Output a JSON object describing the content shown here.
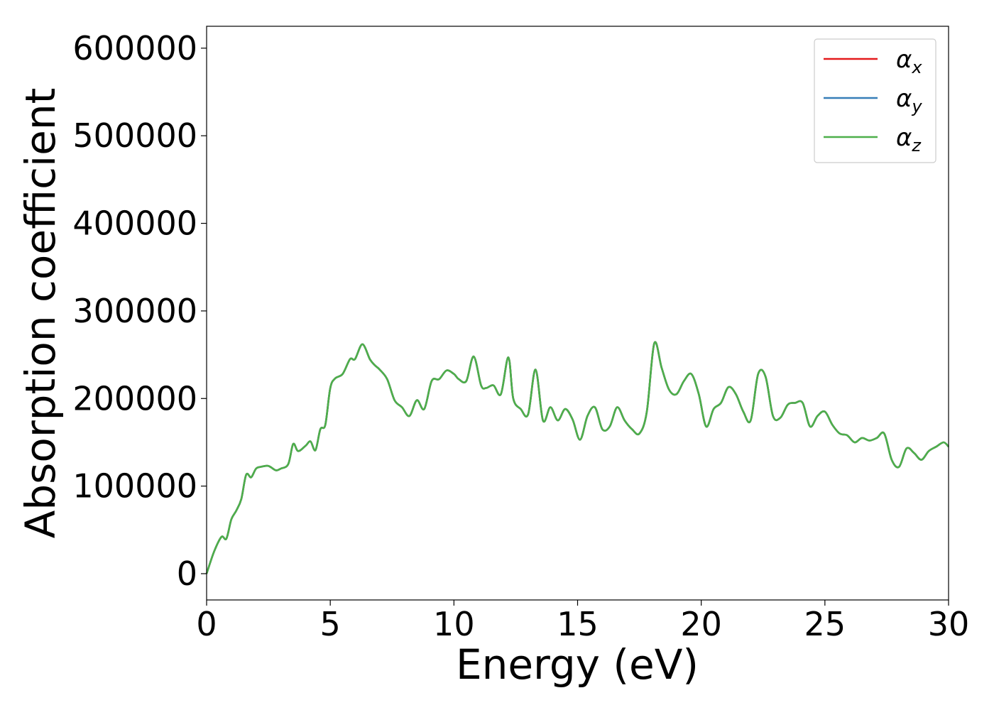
{
  "chart_data": {
    "type": "line",
    "title": "",
    "xlabel": "Energy (eV)",
    "ylabel": "Absorption coefficient",
    "xlim": [
      0,
      30
    ],
    "ylim": [
      -30000,
      625000
    ],
    "xticks": [
      0,
      5,
      10,
      15,
      20,
      25,
      30
    ],
    "yticks": [
      0,
      100000,
      200000,
      300000,
      400000,
      500000,
      600000
    ],
    "grid": false,
    "legend_position": "top-right",
    "x": [
      0,
      0.3,
      0.6,
      0.8,
      1.0,
      1.2,
      1.4,
      1.6,
      1.8,
      2.0,
      2.2,
      2.5,
      2.8,
      3.0,
      3.3,
      3.5,
      3.7,
      4.0,
      4.2,
      4.4,
      4.6,
      4.8,
      5.0,
      5.2,
      5.5,
      5.8,
      6.0,
      6.3,
      6.6,
      6.8,
      7.0,
      7.3,
      7.6,
      7.9,
      8.2,
      8.5,
      8.8,
      9.1,
      9.4,
      9.7,
      10.0,
      10.2,
      10.5,
      10.8,
      11.1,
      11.3,
      11.6,
      11.9,
      12.2,
      12.4,
      12.7,
      13.0,
      13.3,
      13.6,
      13.9,
      14.2,
      14.5,
      14.8,
      15.1,
      15.4,
      15.7,
      16.0,
      16.3,
      16.6,
      16.9,
      17.2,
      17.5,
      17.8,
      18.1,
      18.4,
      18.7,
      19.0,
      19.3,
      19.6,
      19.9,
      20.2,
      20.5,
      20.8,
      21.1,
      21.4,
      21.7,
      22.0,
      22.3,
      22.6,
      22.9,
      23.2,
      23.5,
      23.8,
      24.1,
      24.4,
      24.7,
      25.0,
      25.3,
      25.6,
      25.9,
      26.2,
      26.5,
      26.8,
      27.1,
      27.4,
      27.7,
      28.0,
      28.3,
      28.6,
      28.9,
      29.2,
      29.5,
      29.8,
      30.0
    ],
    "series": [
      {
        "name": "α_x",
        "color": "#e41a1c",
        "values": [
          0,
          25000,
          42000,
          40000,
          62000,
          72000,
          85000,
          113000,
          110000,
          120000,
          122000,
          123000,
          118000,
          120000,
          125000,
          148000,
          140000,
          146000,
          151000,
          141000,
          165000,
          170000,
          212000,
          223000,
          228000,
          245000,
          245000,
          262000,
          245000,
          238000,
          233000,
          222000,
          198000,
          190000,
          180000,
          198000,
          188000,
          220000,
          222000,
          232000,
          228000,
          222000,
          220000,
          248000,
          215000,
          212000,
          215000,
          205000,
          247000,
          200000,
          188000,
          182000,
          233000,
          175000,
          190000,
          175000,
          188000,
          176000,
          153000,
          180000,
          190000,
          165000,
          168000,
          190000,
          175000,
          165000,
          160000,
          185000,
          263000,
          235000,
          210000,
          205000,
          220000,
          228000,
          205000,
          168000,
          188000,
          195000,
          213000,
          205000,
          185000,
          175000,
          228000,
          225000,
          180000,
          178000,
          193000,
          195000,
          195000,
          168000,
          180000,
          185000,
          170000,
          160000,
          158000,
          150000,
          155000,
          152000,
          155000,
          160000,
          130000,
          122000,
          143000,
          138000,
          130000,
          140000,
          145000,
          150000,
          145000
        ]
      },
      {
        "name": "α_y",
        "color": "#377eb8",
        "values": [
          0,
          25000,
          42000,
          40000,
          62000,
          72000,
          85000,
          113000,
          110000,
          120000,
          122000,
          123000,
          118000,
          120000,
          125000,
          148000,
          140000,
          146000,
          151000,
          141000,
          165000,
          170000,
          212000,
          223000,
          228000,
          245000,
          245000,
          262000,
          245000,
          238000,
          233000,
          222000,
          198000,
          190000,
          180000,
          198000,
          188000,
          220000,
          222000,
          232000,
          228000,
          222000,
          220000,
          248000,
          215000,
          212000,
          215000,
          205000,
          247000,
          200000,
          188000,
          182000,
          233000,
          175000,
          190000,
          175000,
          188000,
          176000,
          153000,
          180000,
          190000,
          165000,
          168000,
          190000,
          175000,
          165000,
          160000,
          185000,
          263000,
          235000,
          210000,
          205000,
          220000,
          228000,
          205000,
          168000,
          188000,
          195000,
          213000,
          205000,
          185000,
          175000,
          228000,
          225000,
          180000,
          178000,
          193000,
          195000,
          195000,
          168000,
          180000,
          185000,
          170000,
          160000,
          158000,
          150000,
          155000,
          152000,
          155000,
          160000,
          130000,
          122000,
          143000,
          138000,
          130000,
          140000,
          145000,
          150000,
          145000
        ]
      },
      {
        "name": "α_z",
        "color": "#4daf4a",
        "values": [
          0,
          25000,
          42000,
          40000,
          62000,
          72000,
          85000,
          113000,
          110000,
          120000,
          122000,
          123000,
          118000,
          120000,
          125000,
          148000,
          140000,
          146000,
          151000,
          141000,
          165000,
          170000,
          212000,
          223000,
          228000,
          245000,
          245000,
          262000,
          245000,
          238000,
          233000,
          222000,
          198000,
          190000,
          180000,
          198000,
          188000,
          220000,
          222000,
          232000,
          228000,
          222000,
          220000,
          248000,
          215000,
          212000,
          215000,
          205000,
          247000,
          200000,
          188000,
          182000,
          233000,
          175000,
          190000,
          175000,
          188000,
          176000,
          153000,
          180000,
          190000,
          165000,
          168000,
          190000,
          175000,
          165000,
          160000,
          185000,
          263000,
          235000,
          210000,
          205000,
          220000,
          228000,
          205000,
          168000,
          188000,
          195000,
          213000,
          205000,
          185000,
          175000,
          228000,
          225000,
          180000,
          178000,
          193000,
          195000,
          195000,
          168000,
          180000,
          185000,
          170000,
          160000,
          158000,
          150000,
          155000,
          152000,
          155000,
          160000,
          130000,
          122000,
          143000,
          138000,
          130000,
          140000,
          145000,
          150000,
          145000
        ]
      }
    ],
    "legend": [
      {
        "base": "α",
        "sub": "x",
        "color": "#e41a1c"
      },
      {
        "base": "α",
        "sub": "y",
        "color": "#377eb8"
      },
      {
        "base": "α",
        "sub": "z",
        "color": "#4daf4a"
      }
    ]
  }
}
